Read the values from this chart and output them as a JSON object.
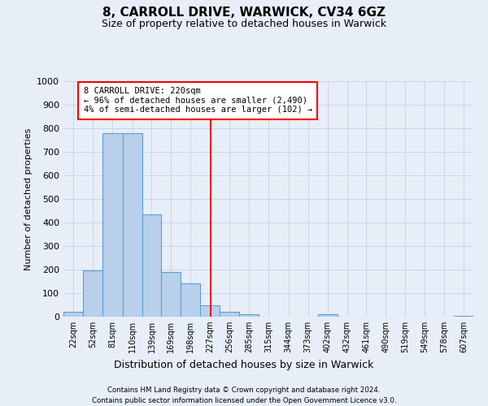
{
  "title": "8, CARROLL DRIVE, WARWICK, CV34 6GZ",
  "subtitle": "Size of property relative to detached houses in Warwick",
  "xlabel": "Distribution of detached houses by size in Warwick",
  "ylabel": "Number of detached properties",
  "bar_color": "#b8d0ea",
  "bar_edge_color": "#5a9fd4",
  "background_color": "#e8eef8",
  "grid_color": "#c8d4e8",
  "vline_x": 227,
  "vline_color": "red",
  "bin_edges": [
    7.5,
    36.5,
    65.5,
    95.5,
    124.5,
    153.5,
    182.5,
    211.5,
    240.5,
    269.5,
    298.5,
    328.5,
    357.5,
    386.5,
    415.5,
    444.5,
    473.5,
    502.5,
    531.5,
    560.5,
    589.5,
    618.5
  ],
  "bin_labels": [
    "22sqm",
    "52sqm",
    "81sqm",
    "110sqm",
    "139sqm",
    "169sqm",
    "198sqm",
    "227sqm",
    "256sqm",
    "285sqm",
    "315sqm",
    "344sqm",
    "373sqm",
    "402sqm",
    "432sqm",
    "461sqm",
    "490sqm",
    "519sqm",
    "549sqm",
    "578sqm",
    "607sqm"
  ],
  "counts": [
    20,
    195,
    780,
    780,
    435,
    190,
    140,
    50,
    20,
    10,
    0,
    0,
    0,
    10,
    0,
    0,
    0,
    0,
    0,
    0,
    5
  ],
  "ylim": [
    0,
    1000
  ],
  "yticks": [
    0,
    100,
    200,
    300,
    400,
    500,
    600,
    700,
    800,
    900,
    1000
  ],
  "annotation_text": "8 CARROLL DRIVE: 220sqm\n← 96% of detached houses are smaller (2,490)\n4% of semi-detached houses are larger (102) →",
  "annotation_box_color": "#ffffff",
  "annotation_box_edge_color": "red",
  "footnote1": "Contains HM Land Registry data © Crown copyright and database right 2024.",
  "footnote2": "Contains public sector information licensed under the Open Government Licence v3.0."
}
